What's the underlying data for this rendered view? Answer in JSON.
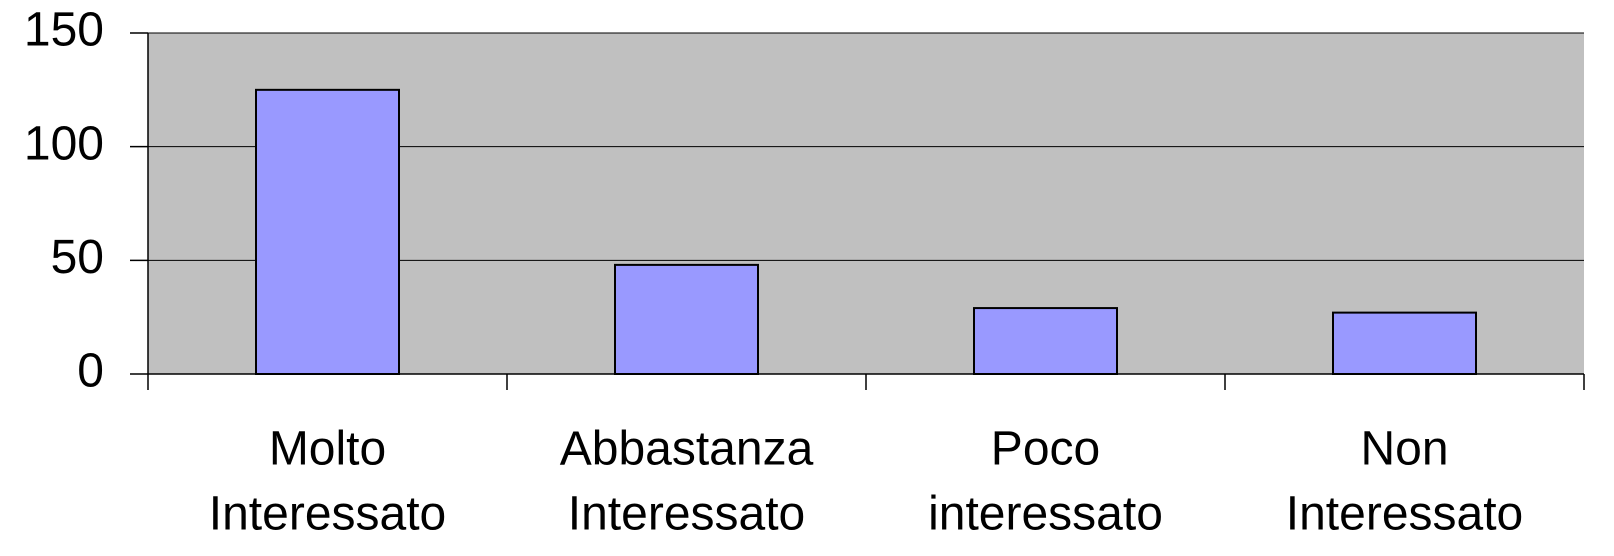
{
  "chart_data": {
    "type": "bar",
    "categories": [
      [
        "Molto",
        "Interessato"
      ],
      [
        "Abbastanza",
        "Interessato"
      ],
      [
        "Poco",
        "interessato"
      ],
      [
        "Non",
        "Interessato"
      ]
    ],
    "values": [
      125,
      48,
      29,
      27
    ],
    "color": "#9999ff",
    "ylim": [
      0,
      150
    ],
    "yticks": [
      0,
      50,
      100,
      150
    ],
    "grid": true
  }
}
